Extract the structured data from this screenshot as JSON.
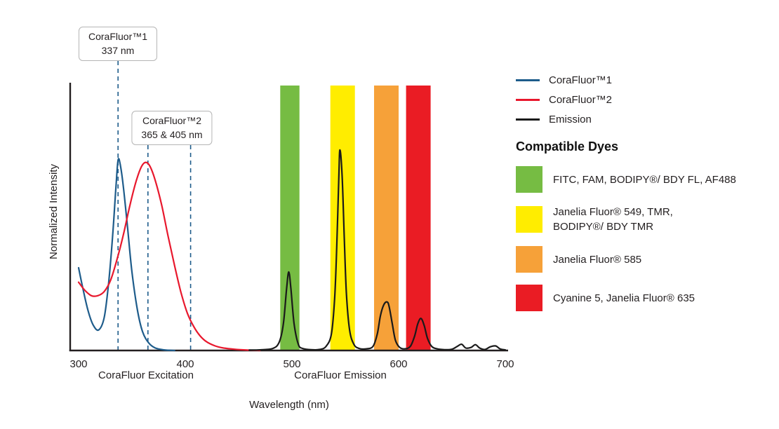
{
  "colors": {
    "axis": "#231f20",
    "blue": "#1e5c8b",
    "red": "#e8182d",
    "black": "#1a1a1a",
    "green": "#76bc43",
    "yellow": "#ffed00",
    "orange": "#f6a139",
    "band_red": "#ea1c24"
  },
  "axis": {
    "y_label": "Normalized Intensity",
    "x_label": "Wavelength (nm)",
    "x_ticks": [
      "300",
      "400",
      "500",
      "600",
      "700"
    ],
    "excitation_label": "CoraFluor Excitation",
    "emission_label": "CoraFluor Emission"
  },
  "callouts": [
    {
      "title": "CoraFluor™1",
      "value": "337 nm"
    },
    {
      "title": "CoraFluor™2",
      "value": "365 & 405 nm"
    }
  ],
  "legend": {
    "series": [
      {
        "label": "CoraFluor™1",
        "color": "#1e5c8b"
      },
      {
        "label": "CoraFluor™2",
        "color": "#e8182d"
      },
      {
        "label": "Emission",
        "color": "#1a1a1a"
      }
    ],
    "dyes_heading": "Compatible Dyes",
    "dyes": [
      {
        "color": "#76bc43",
        "label": "FITC, FAM, BODIPY®/ BDY FL, AF488"
      },
      {
        "color": "#ffed00",
        "label": "Janelia Fluor® 549, TMR,\nBODIPY®/ BDY TMR"
      },
      {
        "color": "#f6a139",
        "label": "Janelia Fluor® 585"
      },
      {
        "color": "#ea1c24",
        "label": "Cyanine 5, Janelia Fluor® 635"
      }
    ]
  },
  "chart_data": {
    "type": "line",
    "title": "CoraFluor excitation and emission spectra with compatible dyes",
    "xlabel": "Wavelength (nm)",
    "ylabel": "Normalized Intensity",
    "xlim": [
      300,
      700
    ],
    "ylim": [
      0,
      1
    ],
    "x_ticks": [
      300,
      400,
      500,
      600,
      700
    ],
    "grid": false,
    "legend_position": "right",
    "excitation_peaks_nm": {
      "CoraFluor1": 337,
      "CoraFluor2": [
        365,
        405
      ]
    },
    "dashed_lines_nm": [
      337,
      365,
      405
    ],
    "bands": [
      {
        "name": "fitc-fam-bodipy-af488",
        "color": "#76bc43",
        "from": 489,
        "to": 507
      },
      {
        "name": "jf549-tmr-bodipy-tmr",
        "color": "#ffed00",
        "from": 536,
        "to": 559
      },
      {
        "name": "jf585",
        "color": "#f6a139",
        "from": 577,
        "to": 600
      },
      {
        "name": "cy5-jf635",
        "color": "#ea1c24",
        "from": 607,
        "to": 630
      }
    ],
    "series": [
      {
        "id": "corafluor1",
        "name": "CoraFluor™1",
        "color": "#1e5c8b",
        "points": [
          [
            300,
            0.4
          ],
          [
            304,
            0.3
          ],
          [
            309,
            0.19
          ],
          [
            314,
            0.12
          ],
          [
            319,
            0.1
          ],
          [
            324,
            0.16
          ],
          [
            328,
            0.32
          ],
          [
            332,
            0.56
          ],
          [
            335,
            0.79
          ],
          [
            337,
            0.92
          ],
          [
            339,
            0.9
          ],
          [
            342,
            0.79
          ],
          [
            346,
            0.59
          ],
          [
            350,
            0.38
          ],
          [
            355,
            0.2
          ],
          [
            360,
            0.09
          ],
          [
            366,
            0.035
          ],
          [
            372,
            0.012
          ],
          [
            380,
            0.003
          ],
          [
            390,
            0
          ]
        ]
      },
      {
        "id": "corafluor2",
        "name": "CoraFluor™2",
        "color": "#e8182d",
        "points": [
          [
            300,
            0.33
          ],
          [
            306,
            0.29
          ],
          [
            312,
            0.265
          ],
          [
            318,
            0.265
          ],
          [
            324,
            0.285
          ],
          [
            330,
            0.34
          ],
          [
            336,
            0.44
          ],
          [
            342,
            0.56
          ],
          [
            348,
            0.7
          ],
          [
            354,
            0.82
          ],
          [
            359,
            0.89
          ],
          [
            363,
            0.91
          ],
          [
            367,
            0.89
          ],
          [
            372,
            0.82
          ],
          [
            378,
            0.7
          ],
          [
            384,
            0.55
          ],
          [
            390,
            0.41
          ],
          [
            396,
            0.28
          ],
          [
            402,
            0.18
          ],
          [
            408,
            0.115
          ],
          [
            414,
            0.07
          ],
          [
            420,
            0.042
          ],
          [
            428,
            0.022
          ],
          [
            436,
            0.012
          ],
          [
            446,
            0.006
          ],
          [
            458,
            0.002
          ],
          [
            470,
            0
          ]
        ]
      },
      {
        "id": "emission",
        "name": "Emission",
        "color": "#1a1a1a",
        "points": [
          [
            460,
            0.002
          ],
          [
            470,
            0.003
          ],
          [
            482,
            0.01
          ],
          [
            488,
            0.04
          ],
          [
            492,
            0.13
          ],
          [
            495,
            0.3
          ],
          [
            497,
            0.38
          ],
          [
            499,
            0.3
          ],
          [
            502,
            0.13
          ],
          [
            506,
            0.03
          ],
          [
            510,
            0.01
          ],
          [
            518,
            0.004
          ],
          [
            526,
            0.005
          ],
          [
            532,
            0.02
          ],
          [
            537,
            0.08
          ],
          [
            540,
            0.25
          ],
          [
            542,
            0.5
          ],
          [
            544,
            0.85
          ],
          [
            545,
            0.97
          ],
          [
            547,
            0.85
          ],
          [
            549,
            0.55
          ],
          [
            551,
            0.28
          ],
          [
            554,
            0.1
          ],
          [
            558,
            0.03
          ],
          [
            563,
            0.01
          ],
          [
            570,
            0.008
          ],
          [
            576,
            0.02
          ],
          [
            580,
            0.08
          ],
          [
            583,
            0.17
          ],
          [
            586,
            0.22
          ],
          [
            589,
            0.235
          ],
          [
            591,
            0.215
          ],
          [
            594,
            0.13
          ],
          [
            597,
            0.05
          ],
          [
            601,
            0.015
          ],
          [
            606,
            0.008
          ],
          [
            611,
            0.02
          ],
          [
            615,
            0.07
          ],
          [
            618,
            0.13
          ],
          [
            621,
            0.155
          ],
          [
            624,
            0.12
          ],
          [
            627,
            0.06
          ],
          [
            631,
            0.02
          ],
          [
            636,
            0.008
          ],
          [
            643,
            0.004
          ],
          [
            650,
            0.006
          ],
          [
            655,
            0.02
          ],
          [
            659,
            0.03
          ],
          [
            663,
            0.012
          ],
          [
            668,
            0.015
          ],
          [
            672,
            0.028
          ],
          [
            676,
            0.012
          ],
          [
            681,
            0.005
          ],
          [
            686,
            0.018
          ],
          [
            691,
            0.022
          ],
          [
            695,
            0.008
          ],
          [
            700,
            0.003
          ]
        ]
      }
    ]
  }
}
